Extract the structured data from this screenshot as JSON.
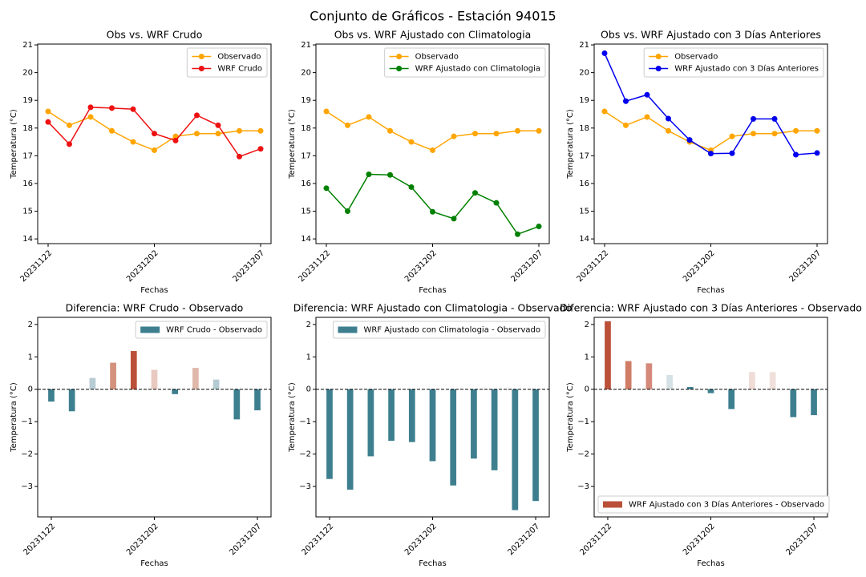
{
  "title": "Conjunto de Gráficos - Estación 94015",
  "chart_data": [
    {
      "type": "line",
      "title": "Obs vs. WRF Crudo",
      "x_label": "Fechas",
      "y_label": "Temperatura (°C)",
      "categories": [
        "20231122",
        null,
        null,
        null,
        null,
        "20231202",
        null,
        null,
        null,
        null,
        "20231207"
      ],
      "xlim": [
        -0.49,
        10.49
      ],
      "ylim": [
        13.83,
        21.03
      ],
      "yticks": [
        14,
        15,
        16,
        17,
        18,
        19,
        20,
        21
      ],
      "legend": "upper right",
      "series": [
        {
          "name": "Observado",
          "color": "#ffa500",
          "values": [
            18.6,
            18.1,
            18.4,
            17.9,
            17.5,
            17.2,
            17.7,
            17.8,
            17.8,
            17.9,
            17.9
          ]
        },
        {
          "name": "WRF Crudo",
          "color": "#ee1111",
          "values": [
            18.22,
            17.42,
            18.75,
            18.72,
            18.68,
            17.8,
            17.55,
            18.46,
            18.1,
            16.97,
            17.25
          ]
        }
      ]
    },
    {
      "type": "line",
      "title": "Obs vs. WRF Ajustado con Climatologia",
      "x_label": "Fechas",
      "y_label": "Temperatura (°C)",
      "categories": [
        "20231122",
        null,
        null,
        null,
        null,
        "20231202",
        null,
        null,
        null,
        null,
        "20231207"
      ],
      "xlim": [
        -0.49,
        10.49
      ],
      "ylim": [
        13.83,
        21.03
      ],
      "yticks": [
        14,
        15,
        16,
        17,
        18,
        19,
        20,
        21
      ],
      "legend": "upper right",
      "series": [
        {
          "name": "Observado",
          "color": "#ffa500",
          "values": [
            18.6,
            18.1,
            18.4,
            17.9,
            17.5,
            17.2,
            17.7,
            17.8,
            17.8,
            17.9,
            17.9
          ]
        },
        {
          "name": "WRF Ajustado con Climatologia",
          "color": "#008000",
          "values": [
            15.83,
            15.0,
            16.33,
            16.31,
            15.87,
            14.98,
            14.73,
            15.66,
            15.3,
            14.17,
            14.45
          ]
        }
      ]
    },
    {
      "type": "line",
      "title": "Obs vs. WRF Ajustado con 3 Días Anteriores",
      "x_label": "Fechas",
      "y_label": "Temperatura (°C)",
      "categories": [
        "20231122",
        null,
        null,
        null,
        null,
        "20231202",
        null,
        null,
        null,
        null,
        "20231207"
      ],
      "xlim": [
        -0.49,
        10.49
      ],
      "ylim": [
        13.83,
        21.03
      ],
      "yticks": [
        14,
        15,
        16,
        17,
        18,
        19,
        20,
        21
      ],
      "legend": "upper right",
      "series": [
        {
          "name": "Observado",
          "color": "#ffa500",
          "values": [
            18.6,
            18.1,
            18.4,
            17.9,
            17.5,
            17.2,
            17.7,
            17.8,
            17.8,
            17.9,
            17.9
          ]
        },
        {
          "name": "WRF Ajustado con 3 Días Anteriores",
          "color": "#0000ee",
          "values": [
            20.7,
            18.97,
            19.2,
            18.34,
            17.57,
            17.08,
            17.09,
            18.33,
            18.33,
            17.04,
            17.1
          ]
        }
      ]
    },
    {
      "type": "bar",
      "title": "Diferencia: WRF Crudo - Observado",
      "x_label": "Fechas",
      "y_label": "Temperatura (°C)",
      "categories": [
        "20231122",
        null,
        null,
        null,
        null,
        "20231202",
        null,
        null,
        null,
        null,
        "20231207"
      ],
      "xlim": [
        -0.66,
        10.66
      ],
      "ylim": [
        -3.94,
        2.22
      ],
      "yticks": [
        {
          "value": -3,
          "label": "−3"
        },
        {
          "value": -2,
          "label": "−2"
        },
        {
          "value": -1,
          "label": "−1"
        },
        0,
        1,
        2
      ],
      "hline": 0,
      "legend": "upper right",
      "series": [
        {
          "name": "WRF Crudo - Observado",
          "colors": [
            "#3d7f8f",
            "#3d7f8f",
            "#b8ccd4",
            "#d4917d",
            "#bb5039",
            "#e8c9bf",
            "#3d7f8f",
            "#dfb8ab",
            "#b5cbd3",
            "#3d7f8f",
            "#3d7f8f"
          ],
          "values": [
            -0.38,
            -0.68,
            0.35,
            0.82,
            1.18,
            0.6,
            -0.15,
            0.66,
            0.3,
            -0.93,
            -0.65
          ]
        }
      ]
    },
    {
      "type": "bar",
      "title": "Diferencia: WRF Ajustado con Climatologia - Observado",
      "x_label": "Fechas",
      "y_label": "Temperatura (°C)",
      "categories": [
        "20231122",
        null,
        null,
        null,
        null,
        "20231202",
        null,
        null,
        null,
        null,
        "20231207"
      ],
      "xlim": [
        -0.66,
        10.66
      ],
      "ylim": [
        -3.94,
        2.22
      ],
      "yticks": [
        {
          "value": -3,
          "label": "−3"
        },
        {
          "value": -2,
          "label": "−2"
        },
        {
          "value": -1,
          "label": "−1"
        },
        0,
        1,
        2
      ],
      "hline": 0,
      "legend": "upper right",
      "series": [
        {
          "name": "WRF Ajustado con Climatologia - Observado",
          "colors": [
            "#3d7f8f",
            "#3d7f8f",
            "#3d7f8f",
            "#3d7f8f",
            "#3d7f8f",
            "#3d7f8f",
            "#3d7f8f",
            "#3d7f8f",
            "#3d7f8f",
            "#3d7f8f",
            "#3d7f8f"
          ],
          "values": [
            -2.77,
            -3.1,
            -2.07,
            -1.59,
            -1.63,
            -2.22,
            -2.97,
            -2.14,
            -2.5,
            -3.73,
            -3.45
          ]
        }
      ]
    },
    {
      "type": "bar",
      "title": "Diferencia: WRF Ajustado con 3 Días Anteriores - Observado",
      "x_label": "Fechas",
      "y_label": "Temperatura (°C)",
      "categories": [
        "20231122",
        null,
        null,
        null,
        null,
        "20231202",
        null,
        null,
        null,
        null,
        "20231207"
      ],
      "xlim": [
        -0.66,
        10.66
      ],
      "ylim": [
        -3.94,
        2.22
      ],
      "yticks": [
        {
          "value": -3,
          "label": "−3"
        },
        {
          "value": -2,
          "label": "−2"
        },
        {
          "value": -1,
          "label": "−1"
        },
        0,
        1,
        2
      ],
      "hline": 0,
      "legend": "lower left",
      "series": [
        {
          "name": "WRF Ajustado con 3 Días Anteriores - Observado",
          "colors": [
            "#bb5039",
            "#cf7d66",
            "#d4897a",
            "#d6e1e5",
            "#3d7f8f",
            "#3d7f8f",
            "#3d7f8f",
            "#f0dcd6",
            "#f0e0db",
            "#3d7f8f",
            "#3d7f8f"
          ],
          "values": [
            2.1,
            0.87,
            0.8,
            0.44,
            0.07,
            -0.12,
            -0.61,
            0.53,
            0.53,
            -0.86,
            -0.8
          ]
        }
      ]
    }
  ]
}
